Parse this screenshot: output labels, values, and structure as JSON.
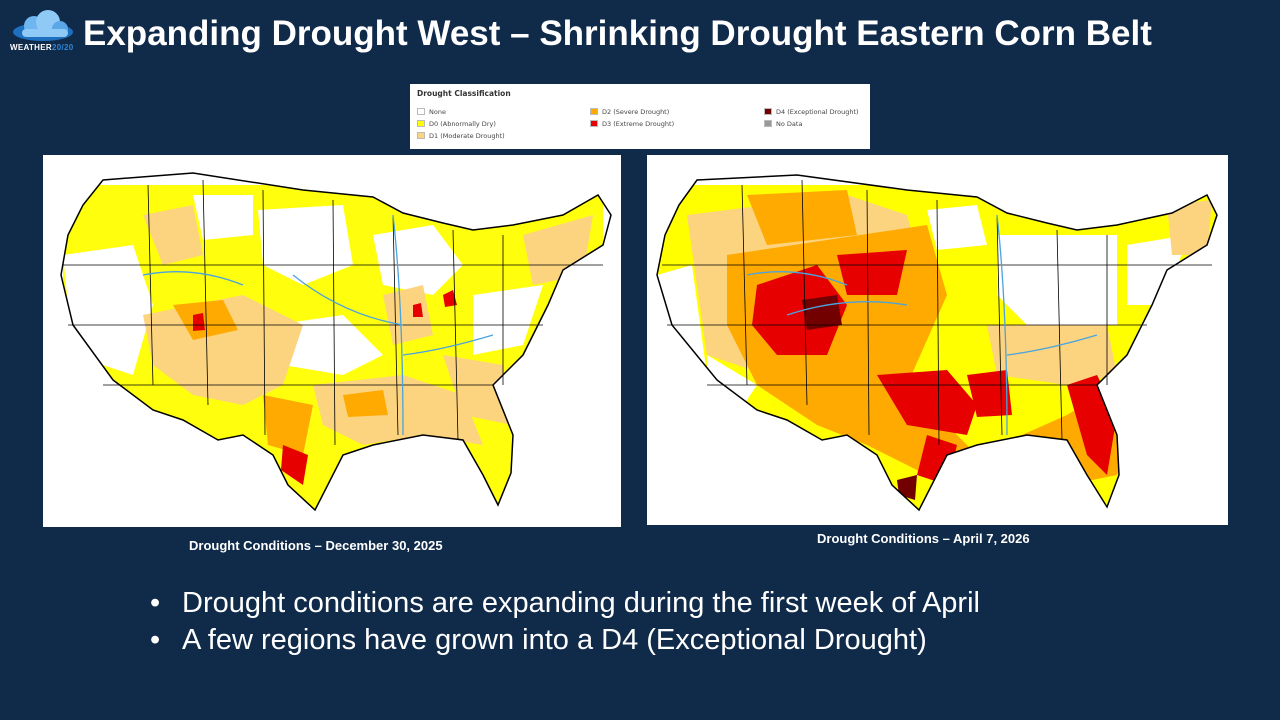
{
  "logo": {
    "text_main": "WEATHER",
    "text_accent": "20/20",
    "icon": "cloud-logo-icon"
  },
  "title": "Expanding Drought West – Shrinking Drought Eastern Corn Belt",
  "legend": {
    "title": "Drought Classification",
    "items": [
      {
        "label": "None",
        "color": "#ffffff"
      },
      {
        "label": "D0 (Abnormally Dry)",
        "color": "#ffff00"
      },
      {
        "label": "D1 (Moderate Drought)",
        "color": "#fcd37f"
      },
      {
        "label": "D2 (Severe Drought)",
        "color": "#ffaa00"
      },
      {
        "label": "D3 (Extreme Drought)",
        "color": "#e60000"
      },
      {
        "label": "D4 (Exceptional Drought)",
        "color": "#730000"
      },
      {
        "label": "No Data",
        "color": "#999999"
      }
    ]
  },
  "maps": {
    "left_caption": "Drought Conditions – December 30, 2025",
    "right_caption": "Drought Conditions – April 7, 2026"
  },
  "bullets": [
    "Drought conditions are expanding during the first week of April",
    "A few regions have grown into a D4 (Exceptional Drought)"
  ]
}
